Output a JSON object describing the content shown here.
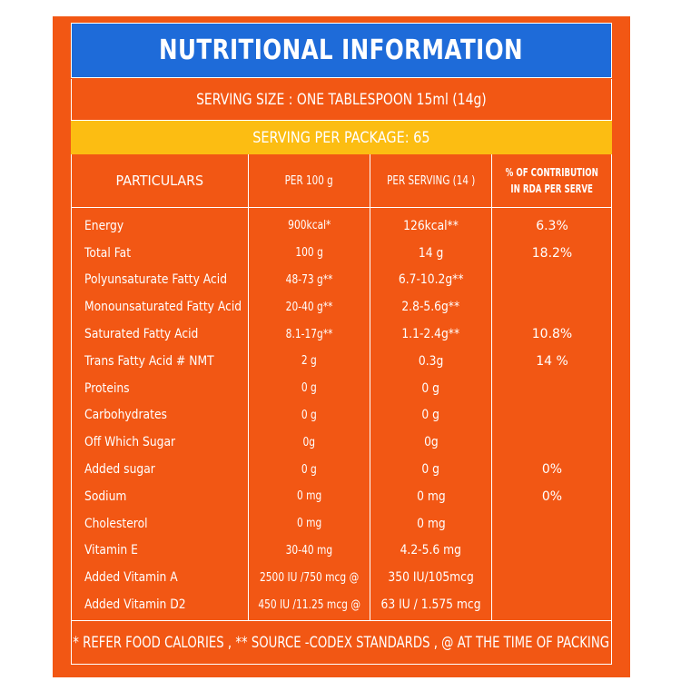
{
  "title": "NUTRITIONAL INFORMATION",
  "serving_size": "SERVING SIZE  : ONE TABLESPOON 15ml (14g)",
  "serving_per_package": "SERVING PER PACKAGE: 65",
  "headers": {
    "particulars": "PARTICULARS",
    "per_100g": "PER 100 g",
    "per_serving": "PER SERVING (14  )",
    "rda_line1": "% OF CONTRIBUTION",
    "rda_line2": "IN RDA PER SERVE"
  },
  "rows": [
    {
      "name": "Energy",
      "per_100g": "900kcal*",
      "per_serving": "126kcal**",
      "rda": "6.3%"
    },
    {
      "name": "Total Fat",
      "per_100g": "100 g",
      "per_serving": "14 g",
      "rda": "18.2%"
    },
    {
      "name": "Polyunsaturate Fatty Acid",
      "per_100g": "48-73 g**",
      "per_serving": "6.7-10.2g**",
      "rda": ""
    },
    {
      "name": "Monounsaturated Fatty Acid",
      "per_100g": "20-40 g**",
      "per_serving": "2.8-5.6g**",
      "rda": ""
    },
    {
      "name": "Saturated Fatty Acid",
      "per_100g": "8.1-17g**",
      "per_serving": "1.1-2.4g**",
      "rda": "10.8%"
    },
    {
      "name": "Trans Fatty Acid # NMT",
      "per_100g": "2 g",
      "per_serving": "0.3g",
      "rda": "14 %"
    },
    {
      "name": "Proteins",
      "per_100g": "0 g",
      "per_serving": "0 g",
      "rda": ""
    },
    {
      "name": "Carbohydrates",
      "per_100g": "0 g",
      "per_serving": "0 g",
      "rda": ""
    },
    {
      "name": "Off Which Sugar",
      "per_100g": "0g",
      "per_serving": "0g",
      "rda": ""
    },
    {
      "name": "Added sugar",
      "per_100g": "0 g",
      "per_serving": "0 g",
      "rda": "0%"
    },
    {
      "name": "Sodium",
      "per_100g": "0 mg",
      "per_serving": "0 mg",
      "rda": "0%"
    },
    {
      "name": "Cholesterol",
      "per_100g": "0 mg",
      "per_serving": "0 mg",
      "rda": ""
    },
    {
      "name": "Vitamin E",
      "per_100g": "30-40 mg",
      "per_serving": "4.2-5.6 mg",
      "rda": ""
    },
    {
      "name": "Added Vitamin A",
      "per_100g": "2500 IU /750 mcg @",
      "per_serving": "350 IU/105mcg",
      "rda": ""
    },
    {
      "name": "Added Vitamin D2",
      "per_100g": "450 IU /11.25 mcg @",
      "per_serving": "63 IU / 1.575 mcg",
      "rda": ""
    }
  ],
  "footer": "* REFER FOOD CALORIES , ** SOURCE -CODEX STANDARDS , @ AT THE TIME OF PACKING",
  "colors": {
    "panel": "#f25714",
    "title_bar": "#1e6bd9",
    "serving_band": "#fcbd12",
    "text": "#ffffff"
  }
}
